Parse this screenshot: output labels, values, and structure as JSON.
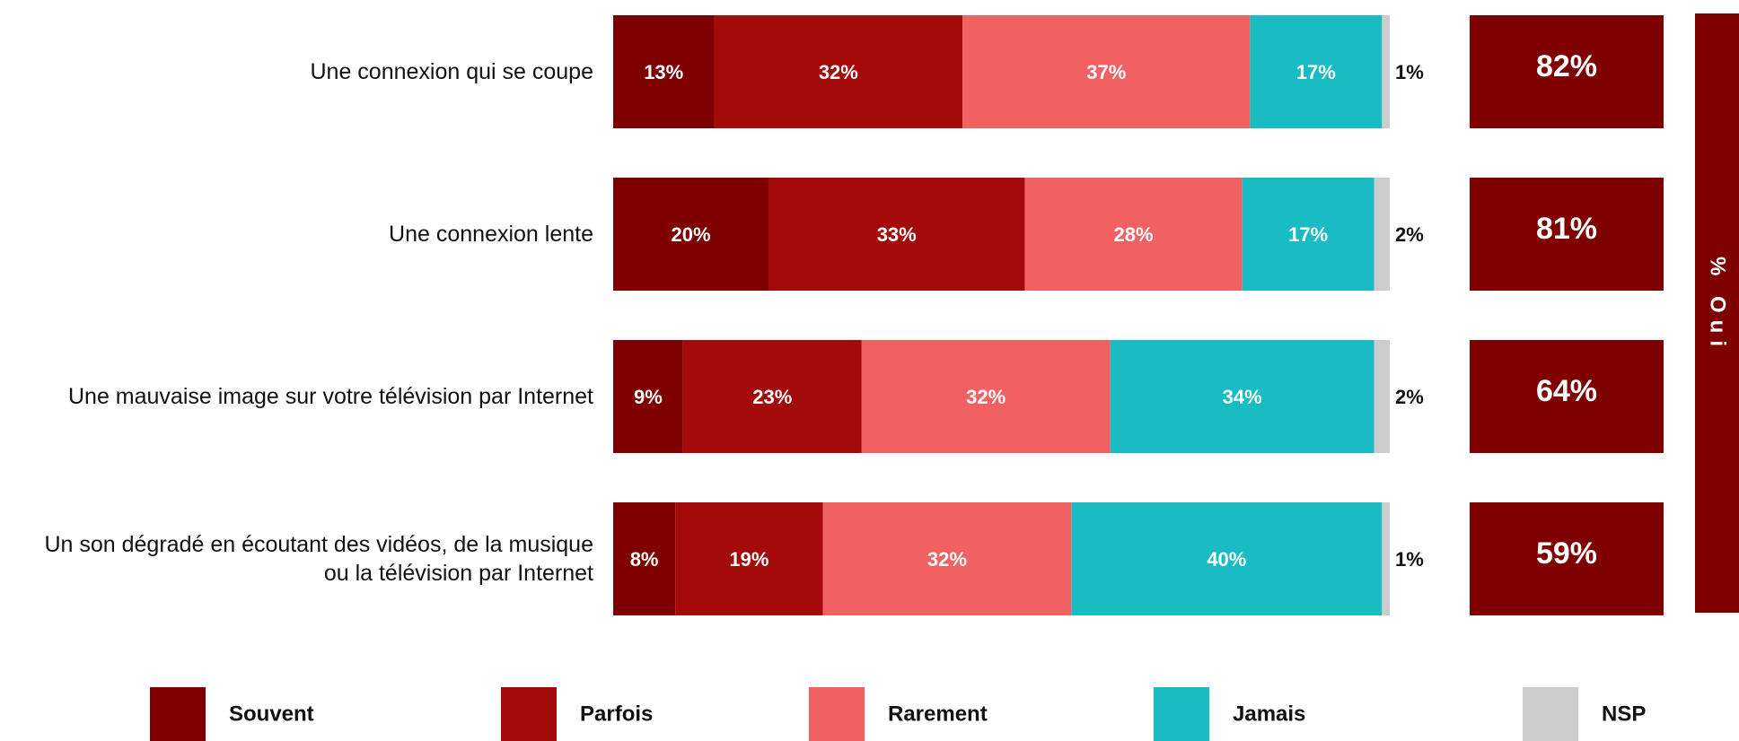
{
  "chart_data": {
    "type": "stacked-bar-horizontal",
    "categories": [
      "Une connexion qui se coupe",
      "Une connexion lente",
      "Une mauvaise image sur votre télévision par Internet",
      "Un son dégradé en écoutant des vidéos, de la musique ou la télévision par Internet"
    ],
    "xlim": [
      0,
      100
    ],
    "series": [
      {
        "name": "Souvent",
        "color": "#7f0000",
        "values": [
          13,
          20,
          9,
          8
        ],
        "value_labels": [
          "13%",
          "20%",
          "9%",
          "8%"
        ]
      },
      {
        "name": "Parfois",
        "color": "#a50a0a",
        "values": [
          32,
          33,
          23,
          19
        ],
        "value_labels": [
          "32%",
          "33%",
          "23%",
          "19%"
        ]
      },
      {
        "name": "Rarement",
        "color": "#f26161",
        "values": [
          37,
          28,
          32,
          32
        ],
        "value_labels": [
          "37%",
          "28%",
          "32%",
          "32%"
        ]
      },
      {
        "name": "Jamais",
        "color": "#1abcc4",
        "values": [
          17,
          17,
          34,
          40
        ],
        "value_labels": [
          "17%",
          "17%",
          "34%",
          "40%"
        ]
      },
      {
        "name": "NSP",
        "color": "#cccccc",
        "values": [
          1,
          2,
          2,
          1
        ],
        "value_labels": [
          "1%",
          "2%",
          "2%",
          "1%"
        ]
      }
    ],
    "oui": {
      "label": "% Oui",
      "color": "#7f0000",
      "values": [
        82,
        81,
        64,
        59
      ],
      "value_labels": [
        "82%",
        "81%",
        "64%",
        "59%"
      ]
    }
  }
}
